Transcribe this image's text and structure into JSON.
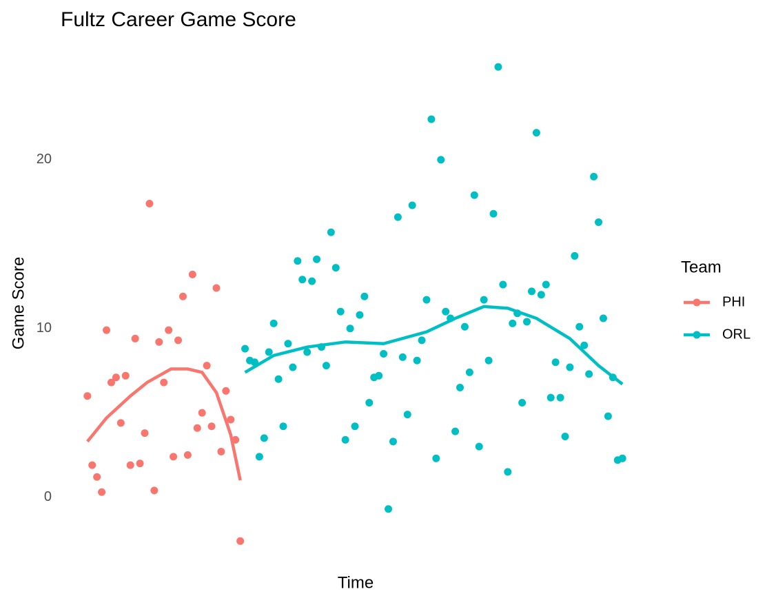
{
  "chart_data": {
    "type": "scatter",
    "title": "Fultz Career Game Score",
    "x_label": "Time",
    "y_label": "Game Score",
    "legend_title": "Team",
    "legend": "right",
    "grid": false,
    "xlim": [
      -4.6,
      118.6
    ],
    "ylim": [
      -3.2,
      26.2
    ],
    "yticks": [
      0,
      10,
      20
    ],
    "series": [
      {
        "name": "PHI",
        "color": "#F8766D",
        "x": [
          1,
          2,
          3,
          4,
          5,
          6,
          7,
          8,
          9,
          10,
          11,
          12,
          13,
          14,
          15,
          16,
          17,
          18,
          19,
          20,
          21,
          22,
          23,
          24,
          25,
          26,
          27,
          28,
          29,
          30,
          31,
          32,
          33
        ],
        "values": [
          6.0,
          1.9,
          1.2,
          0.3,
          9.9,
          6.8,
          7.1,
          4.4,
          7.2,
          1.9,
          9.4,
          2.0,
          3.8,
          17.4,
          0.4,
          9.2,
          6.8,
          9.9,
          2.4,
          9.3,
          11.9,
          2.5,
          13.2,
          4.1,
          5.0,
          7.8,
          4.2,
          12.4,
          2.7,
          6.3,
          4.6,
          3.4,
          -2.6
        ],
        "smooth": {
          "x": [
            1,
            5,
            10,
            13.5,
            18.5,
            22,
            25,
            28,
            31,
            33
          ],
          "values": [
            3.3,
            4.7,
            6.0,
            6.8,
            7.6,
            7.6,
            7.4,
            6.2,
            3.7,
            1.0
          ]
        }
      },
      {
        "name": "ORL",
        "color": "#00BFC4",
        "x": [
          34,
          35,
          36,
          37,
          38,
          39,
          40,
          41,
          42,
          43,
          44,
          45,
          46,
          47,
          48,
          49,
          50,
          51,
          52,
          53,
          54,
          55,
          56,
          57,
          58,
          59,
          60,
          61,
          62,
          63,
          64,
          65,
          66,
          67,
          68,
          69,
          70,
          71,
          72,
          73,
          74,
          75,
          76,
          77,
          78,
          79,
          80,
          81,
          82,
          83,
          84,
          85,
          86,
          87,
          88,
          89,
          90,
          91,
          92,
          93,
          94,
          95,
          96,
          97,
          98,
          99,
          100,
          101,
          102,
          103,
          104,
          105,
          106,
          107,
          108,
          109,
          110,
          111,
          112,
          113
        ],
        "values": [
          8.8,
          8.1,
          8.0,
          2.4,
          3.5,
          8.6,
          10.3,
          7.0,
          4.2,
          9.1,
          7.7,
          14.0,
          12.9,
          8.6,
          12.8,
          14.1,
          8.9,
          7.8,
          15.7,
          13.6,
          11.0,
          3.4,
          10.0,
          4.2,
          10.8,
          11.9,
          5.6,
          7.1,
          7.2,
          8.5,
          -0.7,
          3.3,
          16.6,
          8.3,
          4.9,
          17.3,
          8.1,
          9.3,
          11.7,
          22.4,
          2.3,
          20.0,
          11.0,
          10.6,
          3.9,
          6.5,
          10.1,
          7.4,
          17.9,
          3.0,
          11.7,
          8.1,
          16.8,
          25.5,
          12.6,
          1.5,
          10.3,
          10.9,
          5.6,
          10.4,
          12.2,
          21.6,
          12.0,
          12.6,
          5.9,
          8.0,
          5.9,
          3.6,
          7.7,
          14.3,
          10.1,
          9.0,
          7.3,
          19.0,
          16.3,
          10.6,
          4.8,
          7.1,
          2.2,
          2.3
        ],
        "smooth": {
          "x": [
            34,
            40,
            47,
            55,
            63,
            72,
            78,
            84,
            89,
            95,
            102,
            108,
            113
          ],
          "values": [
            7.4,
            8.4,
            8.9,
            9.2,
            9.1,
            9.8,
            10.6,
            11.3,
            11.2,
            10.6,
            9.4,
            7.8,
            6.7
          ]
        }
      }
    ]
  }
}
